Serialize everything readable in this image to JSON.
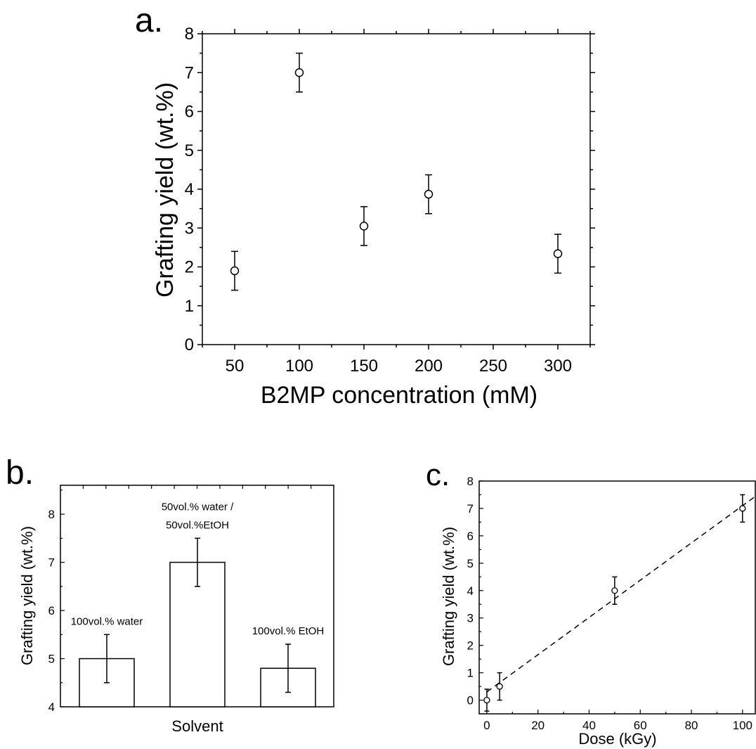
{
  "chart_data": [
    {
      "panel_label": "a.",
      "type": "scatter",
      "xlabel": "B2MP concentration (mM)",
      "ylabel": "Grafting yield (wt.%)",
      "xlim": [
        25,
        325
      ],
      "ylim": [
        0,
        8
      ],
      "xticks": [
        50,
        100,
        150,
        200,
        250,
        300
      ],
      "yticks": [
        0,
        1,
        2,
        3,
        4,
        5,
        6,
        7,
        8
      ],
      "x": [
        50,
        100,
        150,
        200,
        300
      ],
      "y": [
        1.9,
        7.0,
        3.05,
        3.87,
        2.34
      ],
      "yerr": [
        0.5,
        0.5,
        0.5,
        0.5,
        0.5
      ],
      "grid": false
    },
    {
      "panel_label": "b.",
      "type": "bar",
      "xlabel": "Solvent",
      "ylabel": "Grafting yield (wt.%)",
      "ylim": [
        4,
        8.6
      ],
      "yticks": [
        4,
        5,
        6,
        7,
        8
      ],
      "categories": [
        "100vol.% water",
        "50vol.% water / 50vol.%EtOH",
        "100vol.% EtOH"
      ],
      "bar_labels": [
        [
          "100vol.% water"
        ],
        [
          "50vol.% water /",
          "50vol.%EtOH"
        ],
        [
          "100vol.% EtOH"
        ]
      ],
      "values": [
        5.0,
        7.0,
        4.8
      ],
      "yerr": [
        0.5,
        0.5,
        0.5
      ],
      "grid": false
    },
    {
      "panel_label": "c.",
      "type": "scatter",
      "xlabel": "Dose (kGy)",
      "ylabel": "Grafting yield (wt.%)",
      "xlim": [
        -3,
        105
      ],
      "ylim": [
        -0.5,
        8
      ],
      "xticks": [
        0,
        20,
        40,
        60,
        80,
        100
      ],
      "yticks": [
        0,
        1,
        2,
        3,
        4,
        5,
        6,
        7,
        8
      ],
      "x": [
        0,
        5,
        50,
        100
      ],
      "y": [
        0.0,
        0.5,
        4.0,
        7.0
      ],
      "yerr": [
        0.4,
        0.5,
        0.5,
        0.5
      ],
      "fit_line": {
        "style": "dashed",
        "slope": 0.068,
        "intercept": 0.3
      },
      "grid": false
    }
  ]
}
